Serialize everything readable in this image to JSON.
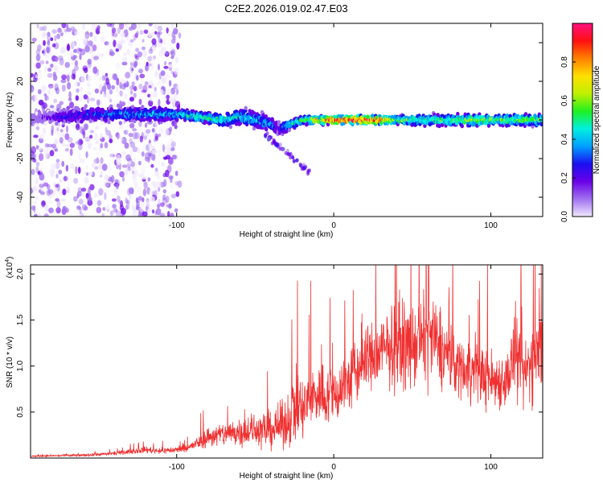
{
  "figure_title": "C2E2.2026.019.02.47.E03",
  "chart_data": [
    {
      "type": "heatmap",
      "title": "C2E2.2026.019.02.47.E03",
      "xlabel": "Height of straight line (km)",
      "ylabel": "Frequency (Hz)",
      "xlim": [
        -193,
        133
      ],
      "ylim": [
        -50,
        50
      ],
      "x_ticks": [
        -100,
        0,
        100
      ],
      "x_tick_labels": [
        "-100",
        "0",
        "100"
      ],
      "y_ticks": [
        -40,
        -20,
        0,
        20,
        40
      ],
      "y_tick_labels": [
        "-40",
        "-20",
        "0",
        "20",
        "40"
      ],
      "colorbar": {
        "label": "Normalized spectral amplitude",
        "range": [
          0,
          1
        ],
        "ticks": [
          0.0,
          0.2,
          0.4,
          0.6,
          0.8
        ],
        "tick_labels": [
          "0.0",
          "0.2",
          "0.4",
          "0.6",
          "0.8"
        ],
        "colormap": [
          "#f0e8ff",
          "#a070f0",
          "#6a00e8",
          "#1a10f0",
          "#00a0ff",
          "#00f0e0",
          "#20f020",
          "#c0f000",
          "#ffe000",
          "#ff8000",
          "#ff1010",
          "#ff1080"
        ]
      },
      "band_profile": {
        "x": [
          -190,
          -170,
          -150,
          -130,
          -110,
          -100,
          -90,
          -80,
          -70,
          -60,
          -50,
          -40,
          -35,
          -30,
          -20,
          -10,
          0,
          10,
          20,
          30,
          40,
          50,
          60,
          70,
          80,
          90,
          100,
          110,
          120,
          130
        ],
        "center_hz": [
          1,
          2,
          3,
          3,
          3,
          3,
          2,
          1,
          0,
          2,
          0,
          -2,
          -5,
          -3,
          0,
          0,
          0,
          0,
          0,
          0,
          0,
          0,
          0,
          0,
          0,
          0,
          0,
          0,
          0,
          0
        ],
        "half_width_hz": [
          4,
          5,
          5,
          5,
          5,
          4,
          4,
          4,
          5,
          6,
          6,
          5,
          6,
          4,
          3,
          3,
          3,
          3,
          3,
          3,
          3,
          4,
          4,
          4,
          4,
          4,
          4,
          4,
          4,
          4
        ],
        "peak_amplitude": [
          0.15,
          0.3,
          0.35,
          0.4,
          0.4,
          0.45,
          0.5,
          0.5,
          0.5,
          0.45,
          0.45,
          0.4,
          0.25,
          0.45,
          0.6,
          0.75,
          0.9,
          0.95,
          0.95,
          0.9,
          0.6,
          0.55,
          0.55,
          0.55,
          0.6,
          0.65,
          0.6,
          0.6,
          0.6,
          0.6
        ]
      },
      "background_noise_region": {
        "x_range": [
          -193,
          -98
        ],
        "level": 0.08
      }
    },
    {
      "type": "line",
      "title": "",
      "xlabel": "Height of straight line (km)",
      "ylabel": "SNR (10 * v/v)",
      "y_multiplier_label": "(x10",
      "y_multiplier_exponent": "4",
      "xlim": [
        -193,
        133
      ],
      "ylim": [
        0,
        21000
      ],
      "x_ticks": [
        -100,
        0,
        100
      ],
      "x_tick_labels": [
        "-100",
        "0",
        "100"
      ],
      "y_ticks": [
        5000,
        10000,
        15000,
        20000
      ],
      "y_tick_labels": [
        "0.5",
        "1.0",
        "1.5",
        "2.0"
      ],
      "color": "#f03030",
      "series": [
        {
          "name": "SNR",
          "x": [
            -193,
            -180,
            -160,
            -140,
            -130,
            -120,
            -110,
            -100,
            -90,
            -80,
            -70,
            -60,
            -50,
            -40,
            -30,
            -25,
            -20,
            -15,
            -10,
            0,
            10,
            20,
            30,
            40,
            50,
            60,
            70,
            80,
            90,
            100,
            110,
            115,
            120,
            125,
            133
          ],
          "mean": [
            200,
            250,
            300,
            500,
            700,
            900,
            800,
            900,
            1300,
            2300,
            2600,
            2900,
            3000,
            3100,
            3800,
            6000,
            5000,
            6500,
            7000,
            6800,
            8500,
            10500,
            11500,
            12500,
            12000,
            13500,
            11500,
            10000,
            9500,
            8500,
            8500,
            11000,
            8500,
            10500,
            12000
          ],
          "spread": [
            100,
            150,
            200,
            250,
            350,
            500,
            450,
            500,
            700,
            1500,
            1800,
            2200,
            2500,
            2800,
            3500,
            6000,
            5000,
            4500,
            4500,
            4500,
            5000,
            5000,
            5500,
            6000,
            6000,
            6500,
            5500,
            4500,
            4500,
            4500,
            4000,
            6000,
            5000,
            6000,
            6000
          ]
        }
      ]
    }
  ]
}
